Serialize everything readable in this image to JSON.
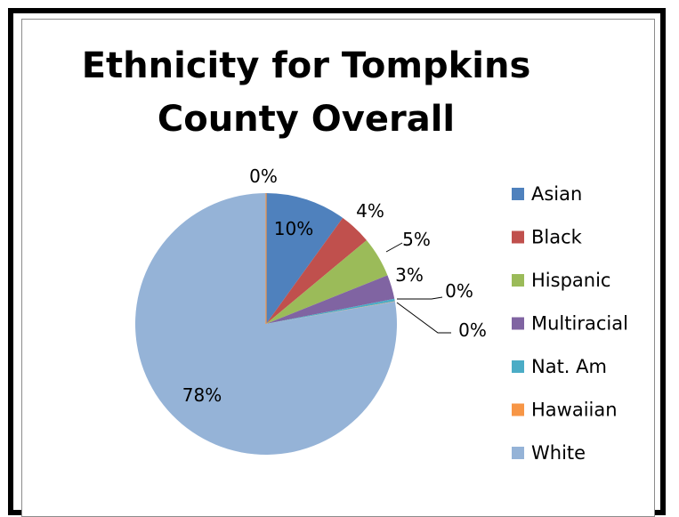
{
  "chart_data": {
    "type": "pie",
    "title_lines": [
      "Ethnicity for Tompkins",
      "County Overall"
    ],
    "slices": [
      {
        "name": "Asian",
        "value": 10,
        "label": "10%",
        "color": "#4f81bd"
      },
      {
        "name": "Black",
        "value": 4,
        "label": "4%",
        "color": "#c0504d"
      },
      {
        "name": "Hispanic",
        "value": 5,
        "label": "5%",
        "color": "#9bbb59"
      },
      {
        "name": "Multiracial",
        "value": 3,
        "label": "3%",
        "color": "#8064a2"
      },
      {
        "name": "Nat. Am",
        "value": 0.3,
        "label": "0%",
        "color": "#4bacc6"
      },
      {
        "name": "Hawaiian",
        "value": 0.05,
        "label": "0%",
        "color": "#f79646"
      },
      {
        "name": "White",
        "value": 78,
        "label": "78%",
        "color": "#95b3d7"
      }
    ],
    "legend_position": "right",
    "legend_entries": [
      "Asian",
      "Black",
      "Hispanic",
      "Multiracial",
      "Nat. Am",
      "Hawaiian",
      "White"
    ]
  },
  "top_label": "0%"
}
